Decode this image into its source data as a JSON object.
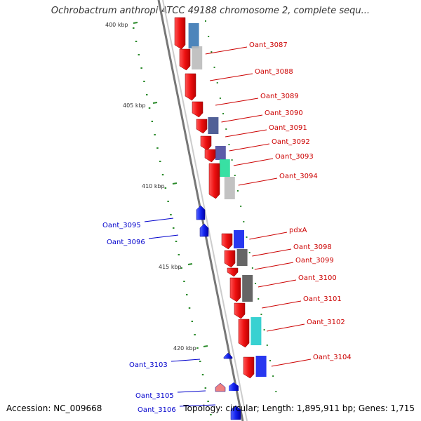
{
  "title": "Ochrobactrum anthropi ATCC 49188 chromosome 2, complete sequ...",
  "footer": {
    "accession": "Accession: NC_009668",
    "stats": "Topology: circular; Length: 1,895,911 bp; Genes: 1,715"
  },
  "colors": {
    "forward_gene": "#ee1111",
    "reverse_gene": "#1122ee",
    "label_forward": "#cc0000",
    "label_reverse": "#0000cc",
    "tick": "#2a8a2a",
    "backbone": "#888888"
  },
  "scale_labels": [
    "400 kbp",
    "405 kbp",
    "410 kbp",
    "415 kbp",
    "420 kbp"
  ],
  "forward_genes": [
    {
      "label": "Oant_3087",
      "feature_color": "#3a78b4"
    },
    {
      "label": "Oant_3088",
      "feature_color": "#bbbbbb"
    },
    {
      "label": "Oant_3089",
      "feature_color": ""
    },
    {
      "label": "Oant_3090",
      "feature_color": "#3e4f8c"
    },
    {
      "label": "Oant_3091",
      "feature_color": ""
    },
    {
      "label": "Oant_3092",
      "feature_color": "#4a4a9e"
    },
    {
      "label": "Oant_3093",
      "feature_color": "#22dd99"
    },
    {
      "label": "Oant_3094",
      "feature_color": "#bbbbbb"
    },
    {
      "label": "pdxA",
      "feature_color": "#1122ee"
    },
    {
      "label": "Oant_3098",
      "feature_color": "#555555"
    },
    {
      "label": "Oant_3099",
      "feature_color": ""
    },
    {
      "label": "Oant_3100",
      "feature_color": "#555555"
    },
    {
      "label": "Oant_3101",
      "feature_color": ""
    },
    {
      "label": "Oant_3102",
      "feature_color": "#22cccc"
    },
    {
      "label": "Oant_3104",
      "feature_color": "#1122ee"
    }
  ],
  "reverse_genes": [
    {
      "label": "Oant_3095"
    },
    {
      "label": "Oant_3096"
    },
    {
      "label": "Oant_3103"
    },
    {
      "label": "Oant_3105"
    },
    {
      "label": "Oant_3106"
    }
  ]
}
